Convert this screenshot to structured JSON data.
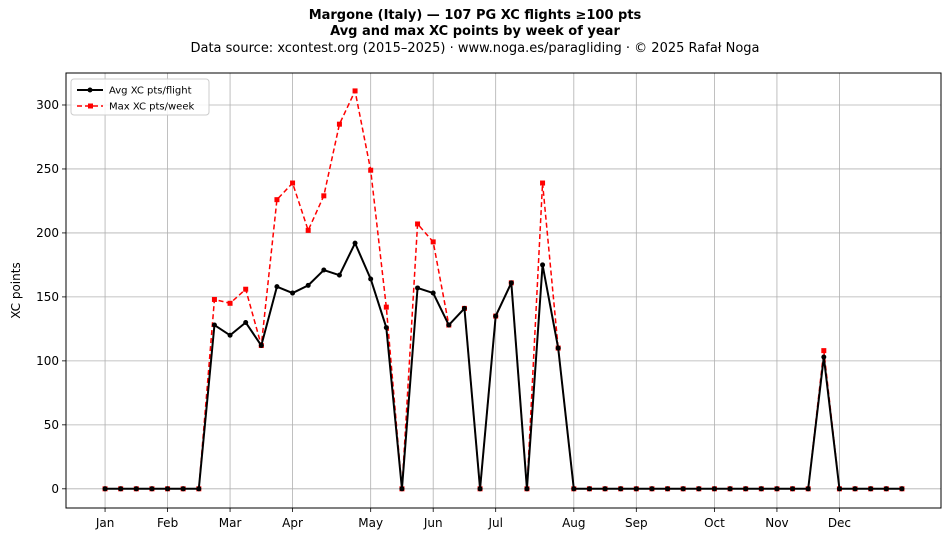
{
  "chart_data": {
    "type": "line",
    "title": "Margone (Italy)  —  107 PG XC flights ≥100 pts",
    "subtitle": "Avg and max XC points by week of year",
    "source_line": "Data source: xcontest.org (2015–2025)  ·  www.noga.es/paragliding  ·  © 2025 Rafał Noga",
    "xlabel": "",
    "ylabel": "XC points",
    "ylim": [
      -15,
      325
    ],
    "xlim": [
      -2.5,
      53.5
    ],
    "yticks": [
      0,
      50,
      100,
      150,
      200,
      250,
      300
    ],
    "month_ticks": [
      {
        "label": "Jan",
        "week": 0
      },
      {
        "label": "Feb",
        "week": 4
      },
      {
        "label": "Mar",
        "week": 8
      },
      {
        "label": "Apr",
        "week": 12
      },
      {
        "label": "May",
        "week": 17
      },
      {
        "label": "Jun",
        "week": 21
      },
      {
        "label": "Jul",
        "week": 25
      },
      {
        "label": "Aug",
        "week": 30
      },
      {
        "label": "Sep",
        "week": 34
      },
      {
        "label": "Oct",
        "week": 39
      },
      {
        "label": "Nov",
        "week": 43
      },
      {
        "label": "Dec",
        "week": 47
      }
    ],
    "grid": true,
    "legend_position": "top-left",
    "x": [
      0,
      1,
      2,
      3,
      4,
      5,
      6,
      7,
      8,
      9,
      10,
      11,
      12,
      13,
      14,
      15,
      16,
      17,
      18,
      19,
      20,
      21,
      22,
      23,
      24,
      25,
      26,
      27,
      28,
      29,
      30,
      31,
      32,
      33,
      34,
      35,
      36,
      37,
      38,
      39,
      40,
      41,
      42,
      43,
      44,
      45,
      46,
      47,
      48,
      49,
      50,
      51
    ],
    "series": [
      {
        "name": "Avg XC pts/flight",
        "color": "#000000",
        "style": "solid",
        "marker": "circle",
        "values": [
          0,
          0,
          0,
          0,
          0,
          0,
          0,
          128,
          120,
          130,
          112,
          158,
          153,
          159,
          171,
          167,
          192,
          164,
          126,
          0,
          157,
          153,
          128,
          141,
          0,
          135,
          161,
          0,
          175,
          110,
          0,
          0,
          0,
          0,
          0,
          0,
          0,
          0,
          0,
          0,
          0,
          0,
          0,
          0,
          0,
          0,
          103,
          0,
          0,
          0,
          0,
          0
        ]
      },
      {
        "name": "Max XC pts/week",
        "color": "#ff0000",
        "style": "dashed",
        "marker": "square",
        "values": [
          0,
          0,
          0,
          0,
          0,
          0,
          0,
          148,
          145,
          156,
          112,
          226,
          239,
          202,
          229,
          285,
          311,
          249,
          142,
          0,
          207,
          193,
          128,
          141,
          0,
          135,
          161,
          0,
          239,
          110,
          0,
          0,
          0,
          0,
          0,
          0,
          0,
          0,
          0,
          0,
          0,
          0,
          0,
          0,
          0,
          0,
          108,
          0,
          0,
          0,
          0,
          0
        ]
      }
    ]
  }
}
